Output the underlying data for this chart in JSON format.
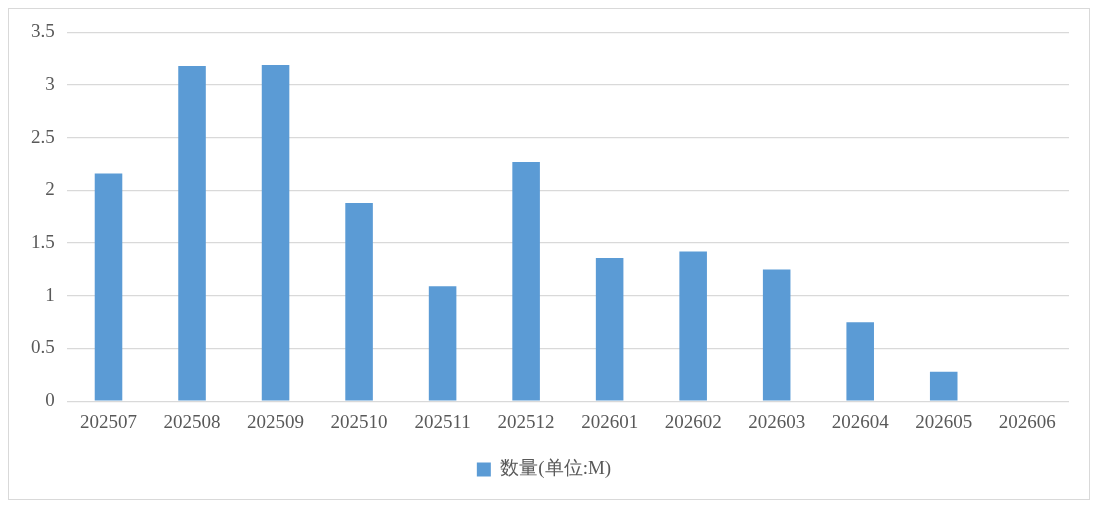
{
  "chart_data": {
    "type": "bar",
    "categories": [
      "202507",
      "202508",
      "202509",
      "202510",
      "202511",
      "202512",
      "202601",
      "202602",
      "202603",
      "202604",
      "202605",
      "202606"
    ],
    "series": [
      {
        "name": "数量(单位:M)",
        "color": "#5b9bd5",
        "values": [
          2.16,
          3.18,
          3.19,
          1.88,
          1.09,
          2.27,
          1.36,
          1.42,
          1.25,
          0.75,
          0.28,
          0
        ]
      }
    ],
    "ylim": [
      0,
      3.5
    ],
    "yticks": [
      0,
      0.5,
      1,
      1.5,
      2,
      2.5,
      3,
      3.5
    ],
    "grid": "y",
    "legend": "bottom"
  }
}
